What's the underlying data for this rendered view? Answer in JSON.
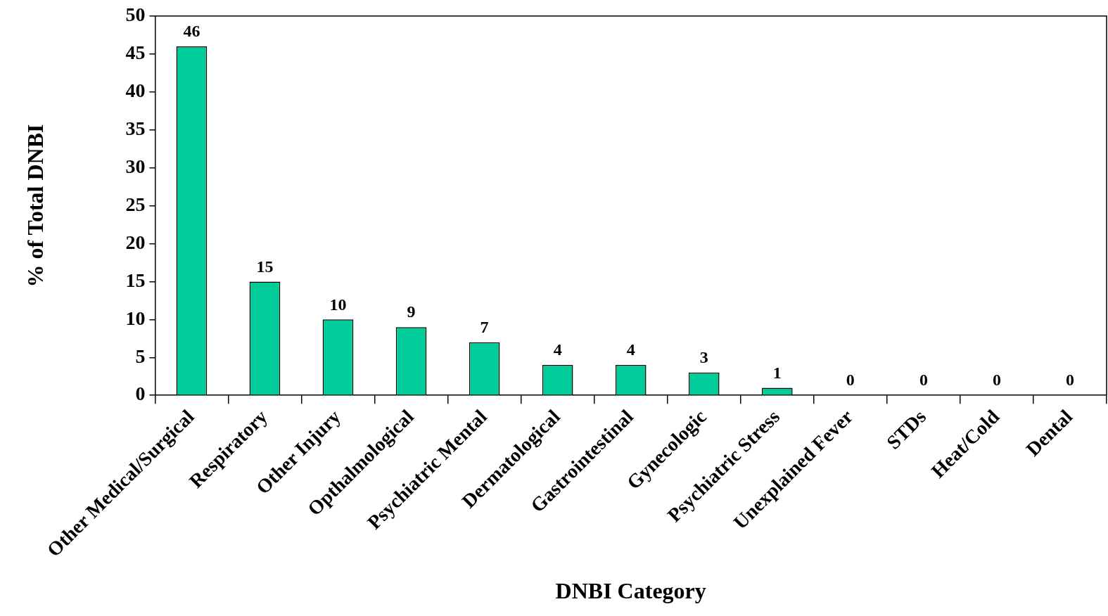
{
  "chart_data": {
    "type": "bar",
    "xlabel": "DNBI Category",
    "ylabel": "% of Total DNBI",
    "categories": [
      "Other Medical/Surgical",
      "Respiratory",
      "Other Injury",
      "Opthalmological",
      "Psychiatric Mental",
      "Dermatological",
      "Gastrointestinal",
      "Gynecologic",
      "Psychiatric Stress",
      "Unexplained Fever",
      "STDs",
      "Heat/Cold",
      "Dental"
    ],
    "values": [
      46,
      15,
      10,
      9,
      7,
      4,
      4,
      3,
      1,
      0,
      0,
      0,
      0
    ],
    "color": "#00cc99",
    "ylim": [
      0,
      50
    ],
    "yticks": [
      0,
      5,
      10,
      15,
      20,
      25,
      30,
      35,
      40,
      45,
      50
    ],
    "grid": false,
    "legend": false,
    "data_labels": true
  }
}
